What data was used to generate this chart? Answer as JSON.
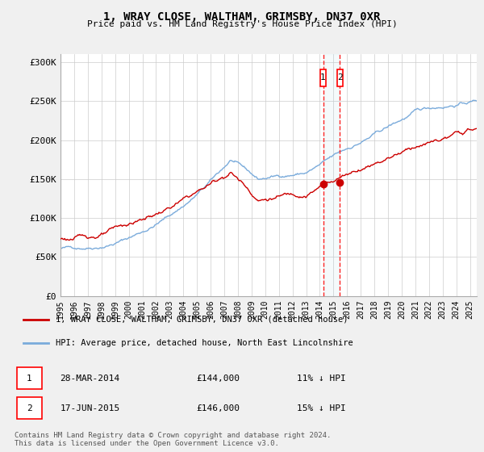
{
  "title": "1, WRAY CLOSE, WALTHAM, GRIMSBY, DN37 0XR",
  "subtitle": "Price paid vs. HM Land Registry's House Price Index (HPI)",
  "ylabel_ticks": [
    "£0",
    "£50K",
    "£100K",
    "£150K",
    "£200K",
    "£250K",
    "£300K"
  ],
  "ytick_values": [
    0,
    50000,
    100000,
    150000,
    200000,
    250000,
    300000
  ],
  "ylim": [
    0,
    310000
  ],
  "xlim_start": 1995.0,
  "xlim_end": 2025.5,
  "hpi_color": "#7aabdb",
  "price_color": "#cc0000",
  "bg_color": "#f0f0f0",
  "plot_bg": "#ffffff",
  "grid_color": "#cccccc",
  "sale1_date": "28-MAR-2014",
  "sale1_price": 144000,
  "sale1_pct": "11% ↓ HPI",
  "sale1_x": 2014.24,
  "sale2_date": "17-JUN-2015",
  "sale2_price": 146000,
  "sale2_pct": "15% ↓ HPI",
  "sale2_x": 2015.46,
  "legend_label_price": "1, WRAY CLOSE, WALTHAM, GRIMSBY, DN37 0XR (detached house)",
  "legend_label_hpi": "HPI: Average price, detached house, North East Lincolnshire",
  "footnote": "Contains HM Land Registry data © Crown copyright and database right 2024.\nThis data is licensed under the Open Government Licence v3.0.",
  "xtick_years": [
    1995,
    1996,
    1997,
    1998,
    1999,
    2000,
    2001,
    2002,
    2003,
    2004,
    2005,
    2006,
    2007,
    2008,
    2009,
    2010,
    2011,
    2012,
    2013,
    2014,
    2015,
    2016,
    2017,
    2018,
    2019,
    2020,
    2021,
    2022,
    2023,
    2024,
    2025
  ]
}
